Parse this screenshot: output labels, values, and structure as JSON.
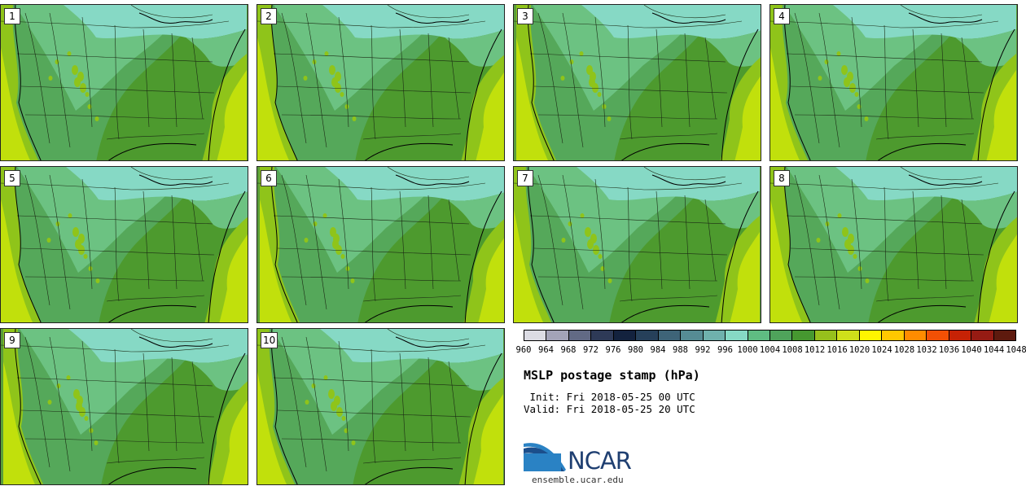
{
  "title": "MSLP postage stamp (hPa)",
  "init_label": " Init: Fri 2018-05-25 00 UTC",
  "valid_label": "Valid: Fri 2018-05-25 20 UTC",
  "site": "ensemble.ucar.edu",
  "logo_text": "NCAR",
  "logo": {
    "arc_color": "#1b4e8b",
    "accent_color": "#2a82c4"
  },
  "stamps": [
    "1",
    "2",
    "3",
    "4",
    "5",
    "6",
    "7",
    "8",
    "9",
    "10"
  ],
  "colorbar": {
    "labels": [
      "960",
      "964",
      "968",
      "972",
      "976",
      "980",
      "984",
      "988",
      "992",
      "996",
      "1000",
      "1004",
      "1008",
      "1012",
      "1016",
      "1020",
      "1024",
      "1028",
      "1032",
      "1036",
      "1040",
      "1044",
      "1048"
    ],
    "colors": [
      "#dcdce4",
      "#a3a3b8",
      "#626a85",
      "#2e3a57",
      "#13223e",
      "#26405a",
      "#3e6478",
      "#568c94",
      "#6fb1ad",
      "#86d9c5",
      "#5fbc82",
      "#4fa35b",
      "#469830",
      "#97c01c",
      "#cfe01a",
      "#fff500",
      "#ffc800",
      "#ff8c00",
      "#f25005",
      "#c62205",
      "#961b13",
      "#5e1a0e"
    ]
  },
  "map_colors": {
    "c1000": "#86d9c5",
    "c1004": "#6cc282",
    "c1008": "#55a85a",
    "c1012": "#4d9a2e",
    "c1016": "#8fc41a",
    "c1020": "#c1e00c"
  }
}
